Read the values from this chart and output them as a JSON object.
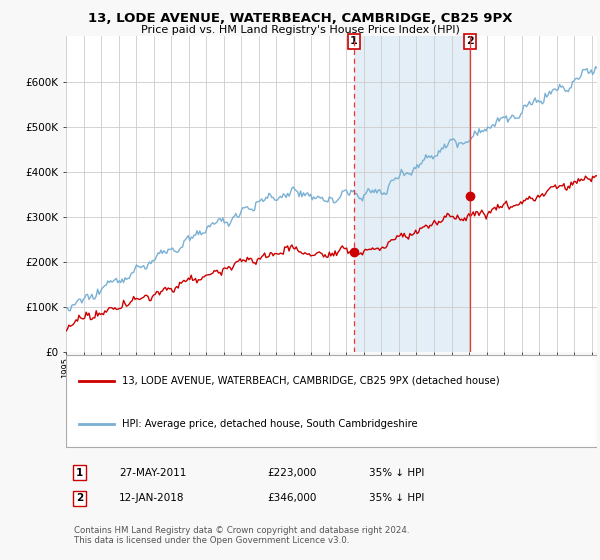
{
  "title": "13, LODE AVENUE, WATERBEACH, CAMBRIDGE, CB25 9PX",
  "subtitle": "Price paid vs. HM Land Registry's House Price Index (HPI)",
  "background_color": "#f8f8f8",
  "plot_bg_color": "#ffffff",
  "grid_color": "#cccccc",
  "hpi_color": "#7ab0d4",
  "price_color": "#cc0000",
  "vline_color": "#ee3333",
  "shade_color": "#d8e8f5",
  "annotation_box_color": "#cc0000",
  "ylim": [
    0,
    700000
  ],
  "yticks": [
    0,
    100000,
    200000,
    300000,
    400000,
    500000,
    600000
  ],
  "ytick_labels": [
    "£0",
    "£100K",
    "£200K",
    "£300K",
    "£400K",
    "£500K",
    "£600K"
  ],
  "sale1_x": 2011.42,
  "sale1_y": 223000,
  "sale1_label": "1",
  "sale2_x": 2018.04,
  "sale2_y": 346000,
  "sale2_label": "2",
  "legend_red": "13, LODE AVENUE, WATERBEACH, CAMBRIDGE, CB25 9PX (detached house)",
  "legend_blue": "HPI: Average price, detached house, South Cambridgeshire",
  "annot1_date": "27-MAY-2011",
  "annot1_price": "£223,000",
  "annot1_hpi": "35% ↓ HPI",
  "annot2_date": "12-JAN-2018",
  "annot2_price": "£346,000",
  "annot2_hpi": "35% ↓ HPI",
  "footer": "Contains HM Land Registry data © Crown copyright and database right 2024.\nThis data is licensed under the Open Government Licence v3.0.",
  "xmin": 1995.0,
  "xmax": 2025.3
}
